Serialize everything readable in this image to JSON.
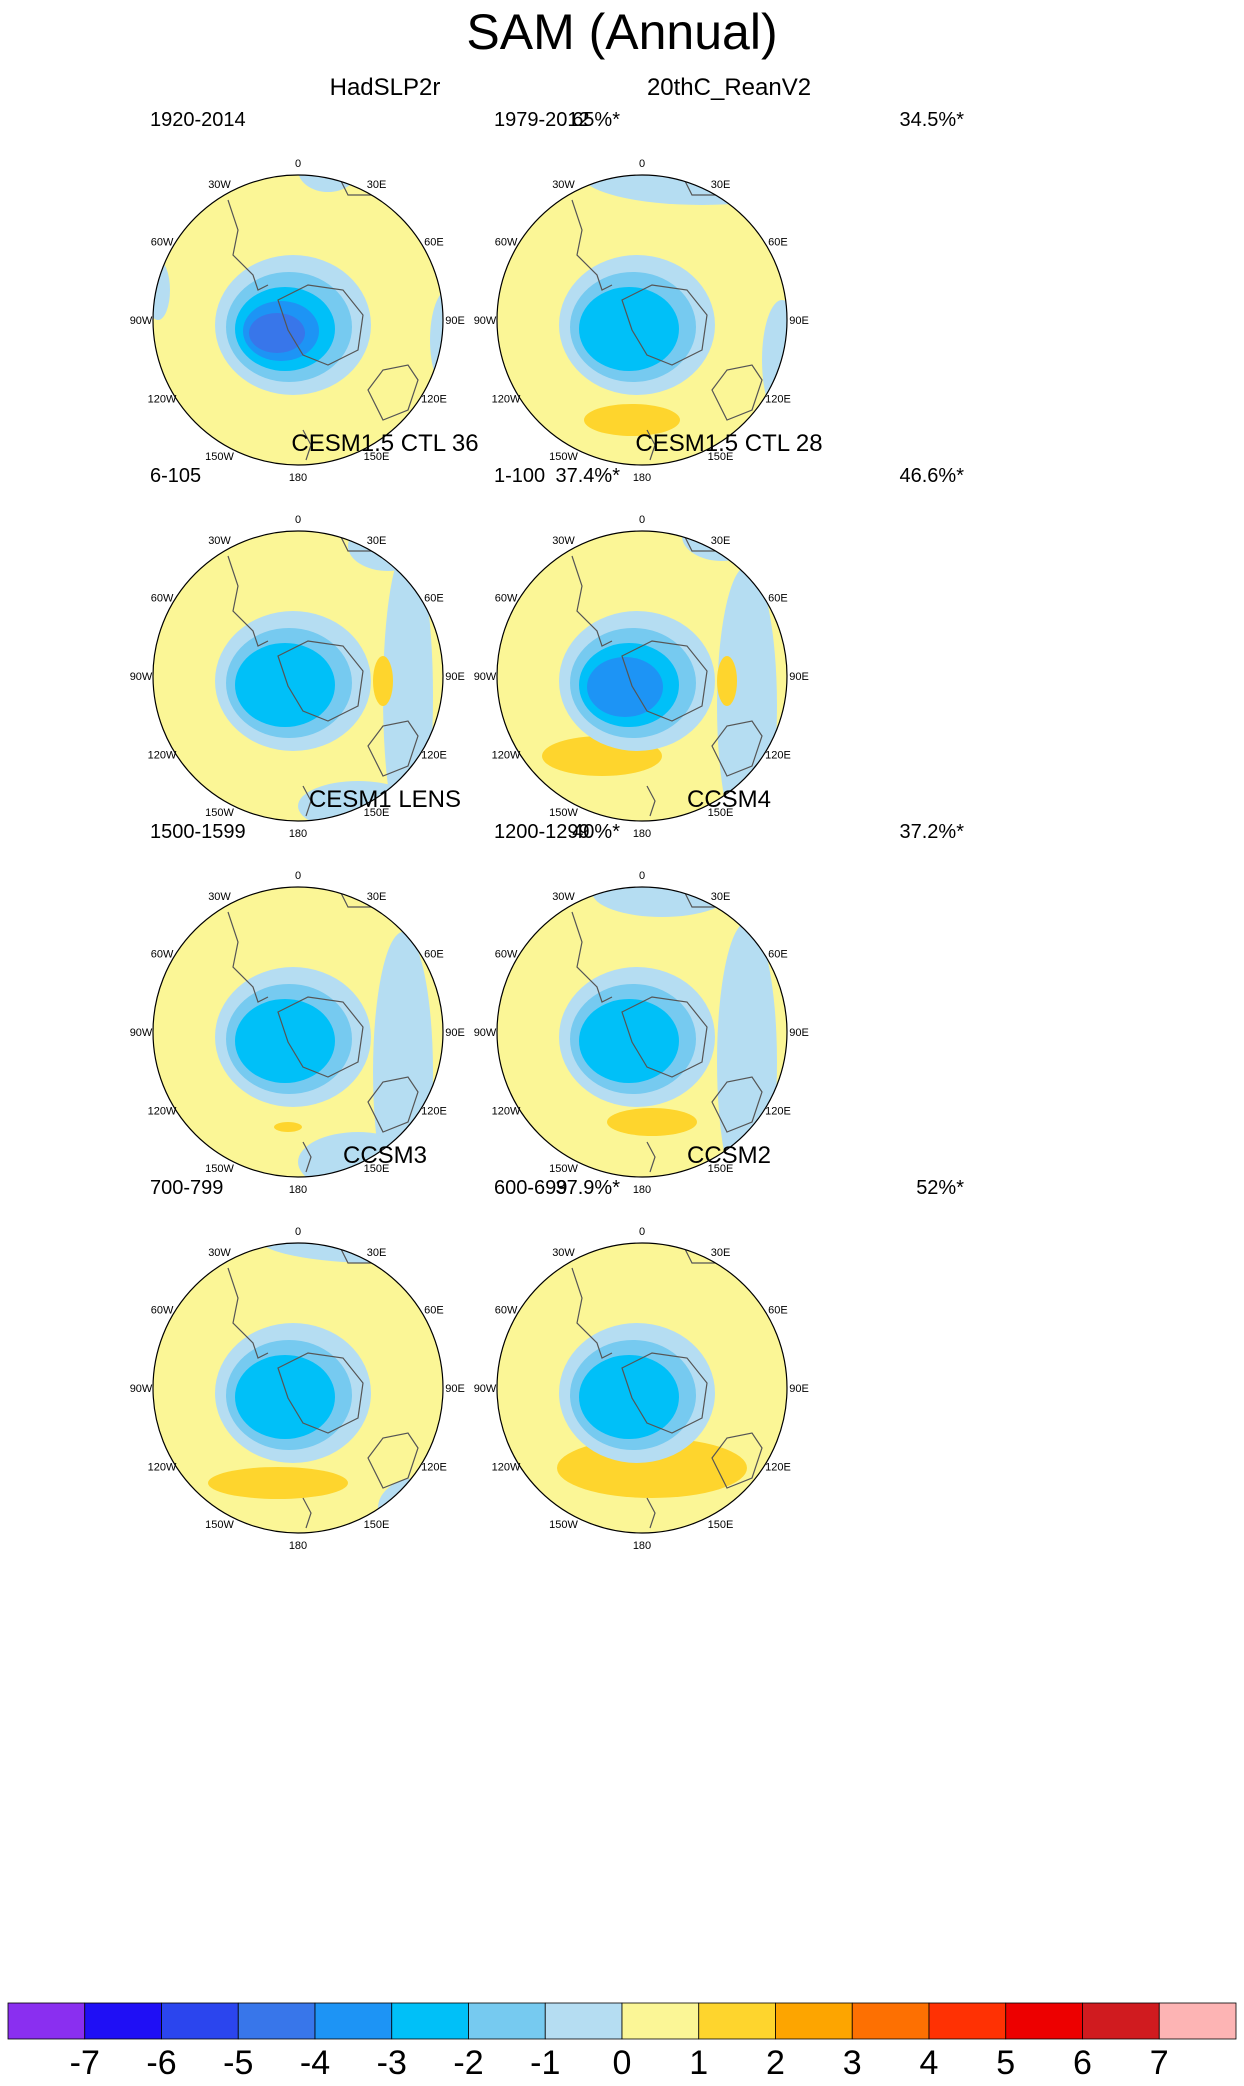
{
  "title": "SAM (Annual)",
  "longitude_labels": [
    "0",
    "30E",
    "60E",
    "90E",
    "120E",
    "150E",
    "180",
    "150W",
    "120W",
    "90W",
    "60W",
    "30W"
  ],
  "chart_data": {
    "type": "heatmap",
    "projection": "south polar stereographic",
    "title": "SAM (Annual)",
    "colorbar": {
      "labels": [
        "-7",
        "-6",
        "-5",
        "-4",
        "-3",
        "-2",
        "-1",
        "0",
        "1",
        "2",
        "3",
        "4",
        "5",
        "6",
        "7"
      ],
      "colors": [
        "#8a2ff0",
        "#1f0ff5",
        "#2b45ee",
        "#3876ea",
        "#1d94f5",
        "#00c0f8",
        "#76caf0",
        "#b5ddf2",
        "#fbf696",
        "#fed52d",
        "#fda500",
        "#fd7002",
        "#ff3103",
        "#ed0000",
        "#d01b1f",
        "#fdb4b4"
      ]
    },
    "panels": [
      {
        "name": "HadSLP2r",
        "period": "1920-2014",
        "variance": "65%*",
        "center_min": -5
      },
      {
        "name": "20thC_ReanV2",
        "period": "1979-2012",
        "variance": "34.5%*",
        "center_min": -3
      },
      {
        "name": "CESM1.5 CTL 36",
        "period": "6-105",
        "variance": "37.4%*",
        "center_min": -3
      },
      {
        "name": "CESM1.5 CTL 28",
        "period": "1-100",
        "variance": "46.6%*",
        "center_min": -4
      },
      {
        "name": "CESM1 LENS",
        "period": "1500-1599",
        "variance": "40%*",
        "center_min": -3
      },
      {
        "name": "CCSM4",
        "period": "1200-1299",
        "variance": "37.2%*",
        "center_min": -3
      },
      {
        "name": "CCSM3",
        "period": "700-799",
        "variance": "37.9%*",
        "center_min": -3
      },
      {
        "name": "CCSM2",
        "period": "600-699",
        "variance": "52%*",
        "center_min": -3
      }
    ]
  }
}
